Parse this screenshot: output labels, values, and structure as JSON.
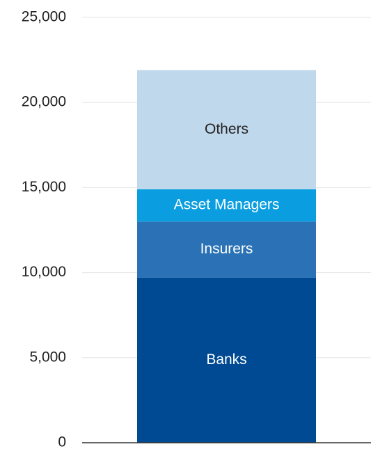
{
  "chart_data": {
    "type": "stacked_bar",
    "categories": [
      null
    ],
    "series": [
      {
        "name": "Banks",
        "color": "#004a93",
        "values": [
          9700
        ]
      },
      {
        "name": "Insurers",
        "color": "#2a72b5",
        "values": [
          3300
        ]
      },
      {
        "name": "Asset Managers",
        "color": "#0a9ee0",
        "values": [
          1900
        ]
      },
      {
        "name": "Others",
        "color": "#c0d8ec",
        "values": [
          7000
        ]
      }
    ],
    "ylim": [
      0,
      25000
    ],
    "yticks": [
      0,
      {
        "value": 5000,
        "label": "5,000"
      },
      {
        "value": 10000,
        "label": "10,000"
      },
      {
        "value": 15000,
        "label": "15,000"
      },
      {
        "value": 20000,
        "label": "20,000"
      },
      {
        "value": 25000,
        "label": "25,000"
      }
    ],
    "grid": true
  }
}
